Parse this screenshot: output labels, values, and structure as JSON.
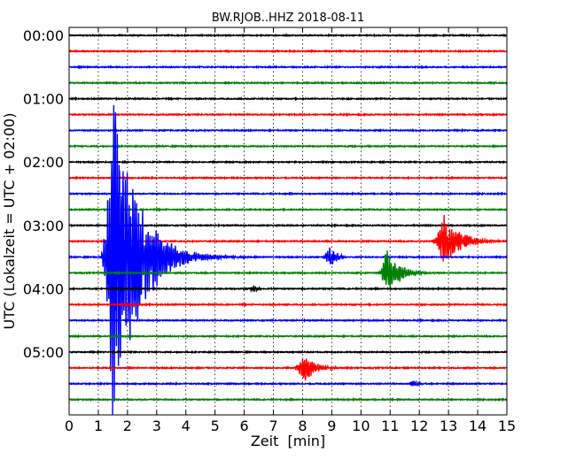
{
  "chart_data": {
    "type": "line",
    "chart_kind": "seismogram-helicorder",
    "title": "BW.RJOB..HHZ 2018-08-11",
    "xlabel": "Zeit  [min]",
    "ylabel": "UTC (Lokalzeit = UTC + 02:00)",
    "xlim": [
      0,
      15
    ],
    "x_ticks": [
      0,
      1,
      2,
      3,
      4,
      5,
      6,
      7,
      8,
      9,
      10,
      11,
      12,
      13,
      14,
      15
    ],
    "x_tick_labels": [
      "0",
      "1",
      "2",
      "3",
      "4",
      "5",
      "6",
      "7",
      "8",
      "9",
      "10",
      "11",
      "12",
      "13",
      "14",
      "15"
    ],
    "grid": "vertical dotted at each minute",
    "y_ticks": [
      {
        "trace": 0,
        "label": "00:00"
      },
      {
        "trace": 4,
        "label": "01:00"
      },
      {
        "trace": 8,
        "label": "02:00"
      },
      {
        "trace": 12,
        "label": "03:00"
      },
      {
        "trace": 16,
        "label": "04:00"
      },
      {
        "trace": 20,
        "label": "05:00"
      }
    ],
    "trace_minutes": 15,
    "trace_count": 24,
    "trace_colors": [
      "#000000",
      "#ff0000",
      "#0000ff",
      "#008000"
    ],
    "events": [
      {
        "trace": 14,
        "start_min": 1.05,
        "end_min": 6.2,
        "peak_min": 1.5,
        "amplitude": 12,
        "decay": 0.8
      },
      {
        "trace": 14,
        "start_min": 8.6,
        "end_min": 9.5,
        "peak_min": 8.95,
        "amplitude": 0.7,
        "decay": 0.25
      },
      {
        "trace": 15,
        "start_min": 10.6,
        "end_min": 13.0,
        "peak_min": 10.85,
        "amplitude": 1.9,
        "decay": 0.4
      },
      {
        "trace": 13,
        "start_min": 12.4,
        "end_min": 15.0,
        "peak_min": 12.85,
        "amplitude": 2.0,
        "decay": 0.5
      },
      {
        "trace": 16,
        "start_min": 6.0,
        "end_min": 6.6,
        "peak_min": 6.3,
        "amplitude": 0.25,
        "decay": 0.2
      },
      {
        "trace": 21,
        "start_min": 7.6,
        "end_min": 9.3,
        "peak_min": 8.05,
        "amplitude": 1.0,
        "decay": 0.35
      },
      {
        "trace": 22,
        "start_min": 11.5,
        "end_min": 12.3,
        "peak_min": 11.8,
        "amplitude": 0.3,
        "decay": 0.2
      }
    ]
  }
}
